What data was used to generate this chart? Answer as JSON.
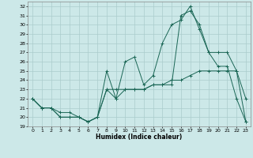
{
  "xlabel": "Humidex (Indice chaleur)",
  "background_color": "#cce8e8",
  "grid_color": "#aacccc",
  "line_color": "#1a6655",
  "xlim": [
    -0.5,
    23.5
  ],
  "ylim": [
    19,
    32.5
  ],
  "xticks": [
    0,
    1,
    2,
    3,
    4,
    5,
    6,
    7,
    8,
    9,
    10,
    11,
    12,
    13,
    14,
    15,
    16,
    17,
    18,
    19,
    20,
    21,
    22,
    23
  ],
  "yticks": [
    19,
    20,
    21,
    22,
    23,
    24,
    25,
    26,
    27,
    28,
    29,
    30,
    31,
    32
  ],
  "line1_x": [
    0,
    1,
    2,
    3,
    4,
    5,
    6,
    7,
    8,
    9,
    10,
    11,
    12,
    13,
    14,
    15,
    16,
    17,
    18,
    19,
    20,
    21,
    22,
    23
  ],
  "line1_y": [
    22,
    21,
    21,
    20,
    20,
    20,
    19.5,
    20,
    23,
    23,
    23,
    23,
    23,
    23.5,
    23.5,
    24,
    24,
    24.5,
    25,
    25,
    25,
    25,
    25,
    19.5
  ],
  "line2_x": [
    0,
    1,
    2,
    3,
    4,
    5,
    6,
    7,
    8,
    9,
    10,
    11,
    12,
    13,
    14,
    15,
    16,
    17,
    18,
    19,
    20,
    21,
    22,
    23
  ],
  "line2_y": [
    22,
    21,
    21,
    20.5,
    20.5,
    20,
    19.5,
    20,
    25,
    22,
    26,
    26.5,
    23.5,
    24.5,
    28,
    30,
    30.5,
    32,
    29.5,
    27,
    27,
    27,
    25,
    22
  ],
  "line3_x": [
    0,
    1,
    2,
    3,
    4,
    5,
    6,
    7,
    8,
    9,
    10,
    11,
    12,
    13,
    14,
    15,
    16,
    17,
    18,
    19,
    20,
    21,
    22,
    23
  ],
  "line3_y": [
    22,
    21,
    21,
    20,
    20,
    20,
    19.5,
    20,
    23,
    22,
    23,
    23,
    23,
    23.5,
    23.5,
    23.5,
    31,
    31.5,
    30,
    27,
    25.5,
    25.5,
    22,
    19.5
  ]
}
